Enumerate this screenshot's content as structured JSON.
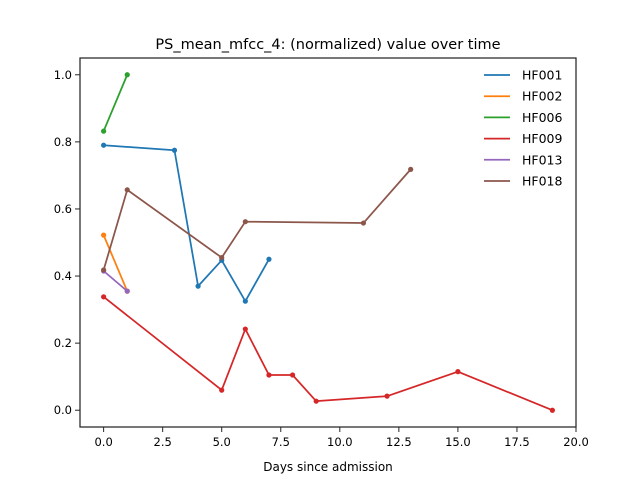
{
  "chart_data": {
    "type": "line",
    "title": "PS_mean_mfcc_4: (normalized) value over time",
    "xlabel": "Days since admission",
    "ylabel": "",
    "xlim": [
      -1,
      20
    ],
    "ylim": [
      -0.05,
      1.05
    ],
    "xticks": [
      0,
      2.5,
      5,
      7.5,
      10,
      12.5,
      15,
      17.5,
      20
    ],
    "xtick_labels": [
      "0.0",
      "2.5",
      "5.0",
      "7.5",
      "10.0",
      "12.5",
      "15.0",
      "17.5",
      "20.0"
    ],
    "yticks": [
      0,
      0.2,
      0.4,
      0.6,
      0.8,
      1.0
    ],
    "ytick_labels": [
      "0.0",
      "0.2",
      "0.4",
      "0.6",
      "0.8",
      "1.0"
    ],
    "grid": false,
    "legend_position": "top-right",
    "series": [
      {
        "name": "HF001",
        "color": "#1f77b4",
        "x": [
          0,
          3,
          4,
          5,
          6,
          7
        ],
        "y": [
          0.79,
          0.775,
          0.37,
          0.447,
          0.325,
          0.45
        ]
      },
      {
        "name": "HF002",
        "color": "#ff7f0e",
        "x": [
          0,
          1
        ],
        "y": [
          0.522,
          0.355
        ]
      },
      {
        "name": "HF006",
        "color": "#2ca02c",
        "x": [
          0,
          1
        ],
        "y": [
          0.832,
          1.0
        ]
      },
      {
        "name": "HF009",
        "color": "#d62728",
        "x": [
          0,
          5,
          6,
          7,
          8,
          9,
          12,
          15,
          19
        ],
        "y": [
          0.338,
          0.06,
          0.242,
          0.105,
          0.105,
          0.027,
          0.042,
          0.115,
          0.0
        ]
      },
      {
        "name": "HF013",
        "color": "#9467bd",
        "x": [
          0,
          1
        ],
        "y": [
          0.415,
          0.355
        ]
      },
      {
        "name": "HF018",
        "color": "#8c564b",
        "x": [
          0,
          1,
          5,
          6,
          11,
          13
        ],
        "y": [
          0.418,
          0.657,
          0.455,
          0.562,
          0.558,
          0.718
        ]
      }
    ]
  }
}
